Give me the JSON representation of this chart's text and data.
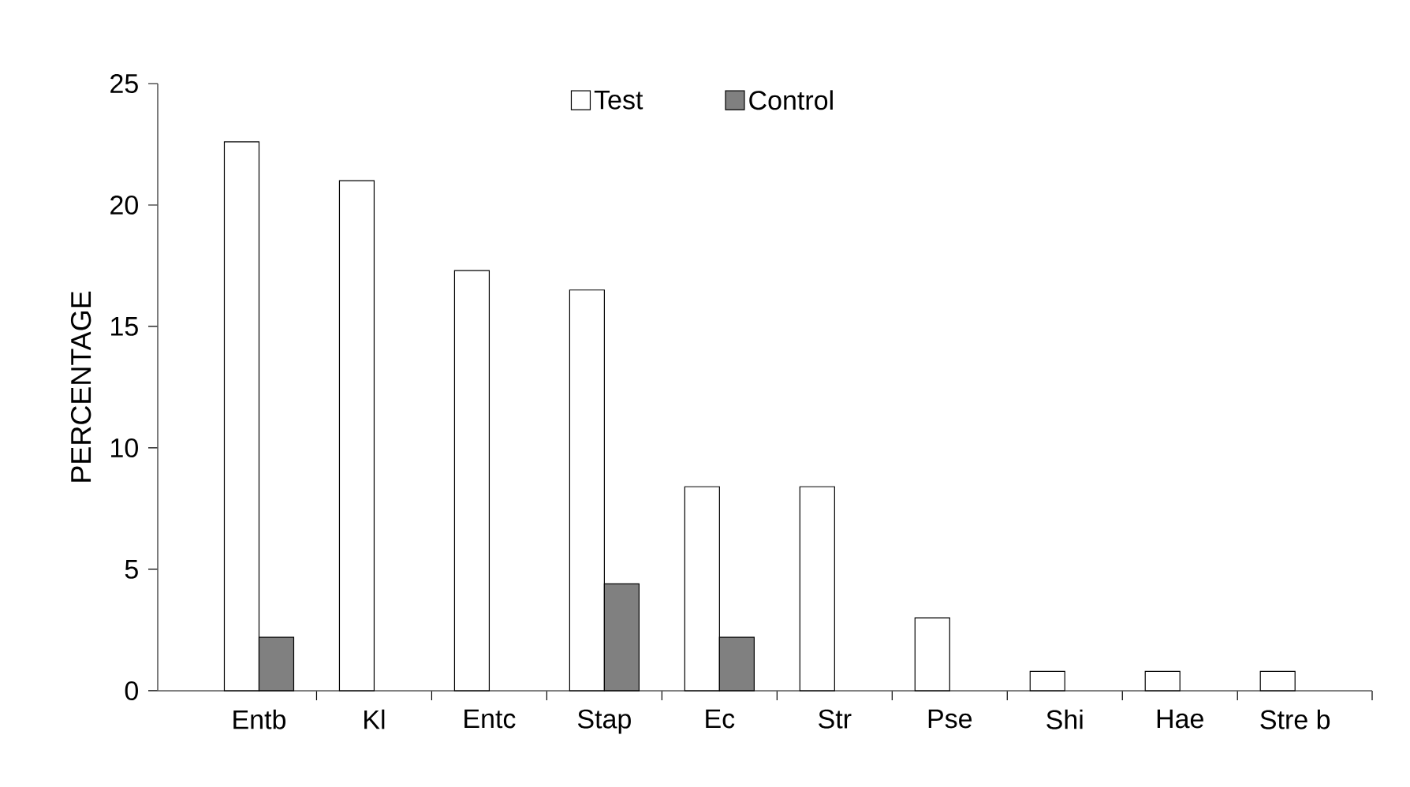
{
  "chart_data": {
    "type": "bar",
    "ylabel": "PERCENTAGE",
    "categories": [
      "Entb",
      "Kl",
      "Entc",
      "Stap",
      "Ec",
      "Str",
      "Pse",
      "Shi",
      "Hae",
      "Stre b"
    ],
    "series": [
      {
        "name": "Test",
        "color": "#ffffff",
        "values": [
          22.6,
          21.0,
          17.3,
          16.5,
          8.4,
          8.4,
          3.0,
          0.8,
          0.8,
          0.8
        ]
      },
      {
        "name": "Control",
        "color": "#808080",
        "values": [
          2.2,
          0,
          0,
          4.4,
          2.2,
          0,
          0,
          0,
          0,
          0
        ]
      }
    ],
    "ylim": [
      0,
      25
    ],
    "yticks": [
      0,
      5,
      10,
      15,
      20,
      25
    ],
    "grid": false,
    "legend": "top"
  }
}
